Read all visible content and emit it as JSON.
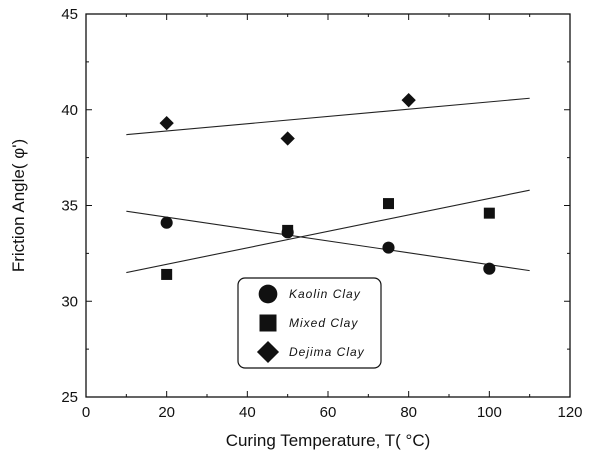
{
  "chart_data": {
    "type": "scatter",
    "xlabel": "Curing Temperature, T( °C)",
    "ylabel": "Friction Angle( φ')",
    "xlim": [
      0,
      120
    ],
    "ylim": [
      25,
      45
    ],
    "xticks": [
      0,
      20,
      40,
      60,
      80,
      100,
      120
    ],
    "yticks": [
      25,
      30,
      35,
      40,
      45
    ],
    "grid": false,
    "legend_position": "bottom-center",
    "series": [
      {
        "name": "Kaolin Clay",
        "marker": "circle",
        "points": [
          [
            20,
            34.1
          ],
          [
            50,
            33.6
          ],
          [
            75,
            32.8
          ],
          [
            100,
            31.7
          ]
        ],
        "trendline": [
          [
            10,
            34.7
          ],
          [
            110,
            31.6
          ]
        ]
      },
      {
        "name": "Mixed Clay",
        "marker": "square",
        "points": [
          [
            20,
            31.4
          ],
          [
            50,
            33.7
          ],
          [
            75,
            35.1
          ],
          [
            100,
            34.6
          ]
        ],
        "trendline": [
          [
            10,
            31.5
          ],
          [
            110,
            35.8
          ]
        ]
      },
      {
        "name": "Dejima Clay",
        "marker": "diamond",
        "points": [
          [
            20,
            39.3
          ],
          [
            50,
            38.5
          ],
          [
            80,
            40.5
          ]
        ],
        "trendline": [
          [
            10,
            38.7
          ],
          [
            110,
            40.6
          ]
        ]
      }
    ]
  }
}
